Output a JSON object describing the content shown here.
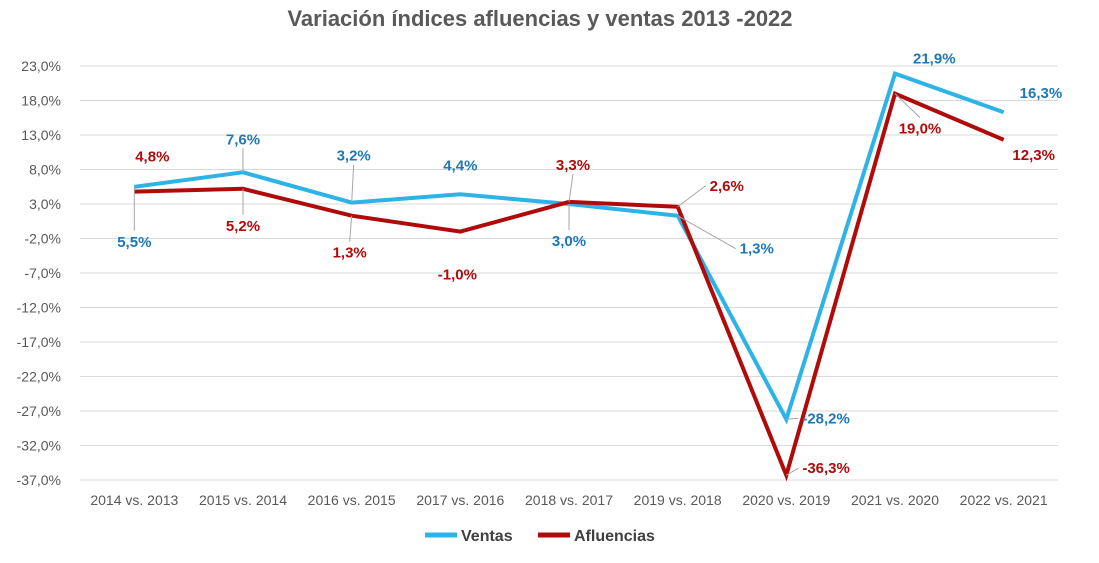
{
  "chart_data": {
    "type": "line",
    "title": "Variación índices afluencias y ventas 2013 -2022",
    "categories": [
      "2014 vs. 2013",
      "2015 vs. 2014",
      "2016 vs. 2015",
      "2017 vs. 2016",
      "2018 vs. 2017",
      "2019 vs. 2018",
      "2020 vs. 2019",
      "2021 vs. 2020",
      "2022 vs. 2021"
    ],
    "y_ticks": [
      "23,0%",
      "18,0%",
      "13,0%",
      "8,0%",
      "3,0%",
      "-2,0%",
      "-7,0%",
      "-12,0%",
      "-17,0%",
      "-22,0%",
      "-27,0%",
      "-32,0%",
      "-37,0%"
    ],
    "ylim": [
      -37,
      23
    ],
    "grid": true,
    "legend_position": "bottom",
    "series": [
      {
        "name": "Ventas",
        "color": "#2eb3e6",
        "label_color": "#1f77b4",
        "values": [
          5.5,
          7.6,
          3.2,
          4.4,
          3.0,
          1.3,
          -28.2,
          21.9,
          16.3
        ],
        "labels": [
          "5,5%",
          "7,6%",
          "3,2%",
          "4,4%",
          "3,0%",
          "1,3%",
          "-28,2%",
          "21,9%",
          "16,3%"
        ]
      },
      {
        "name": "Afluencias",
        "color": "#b00b0b",
        "label_color": "#b00b0b",
        "values": [
          4.8,
          5.2,
          1.3,
          -1.0,
          3.3,
          2.6,
          -36.3,
          19.0,
          12.3
        ],
        "labels": [
          "4,8%",
          "5,2%",
          "1,3%",
          "-1,0%",
          "3,3%",
          "2,6%",
          "-36,3%",
          "19,0%",
          "12,3%"
        ]
      }
    ]
  }
}
